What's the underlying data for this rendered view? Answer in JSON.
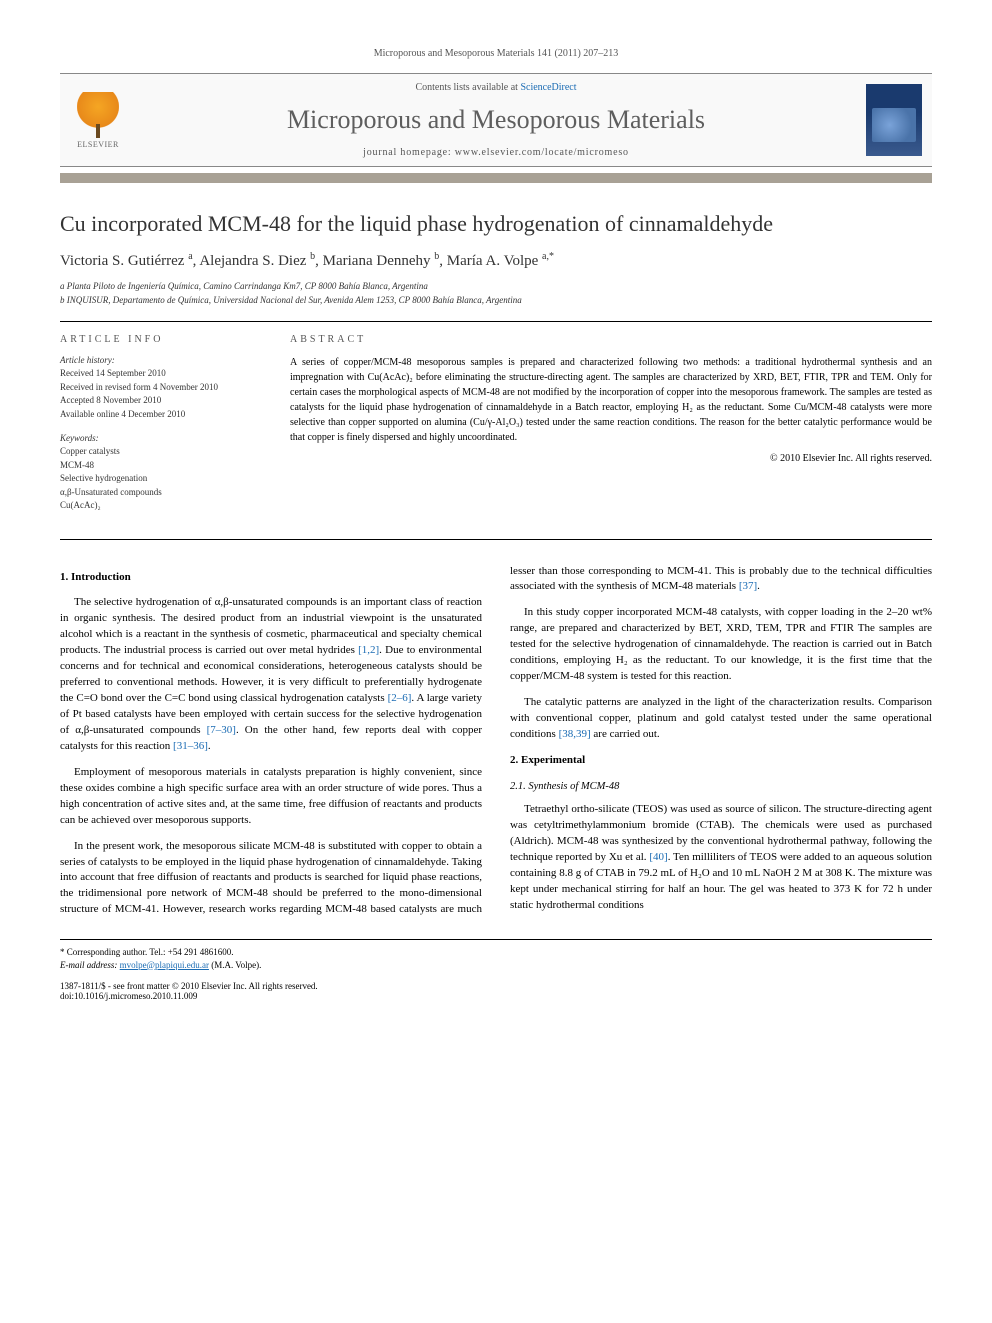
{
  "citation": "Microporous and Mesoporous Materials 141 (2011) 207–213",
  "header": {
    "publisher_name": "ELSEVIER",
    "contents_prefix": "Contents lists available at ",
    "contents_link": "ScienceDirect",
    "journal_name": "Microporous and Mesoporous Materials",
    "homepage_prefix": "journal homepage: ",
    "homepage_url": "www.elsevier.com/locate/micromeso"
  },
  "colors": {
    "rule_bar": "#a8a195",
    "link": "#1a6bb3",
    "journal_grey": "#5e5e5e",
    "cover_top": "#1a3a6e"
  },
  "title": "Cu incorporated MCM-48 for the liquid phase hydrogenation of cinnamaldehyde",
  "authors_html": "Victoria S. Gutiérrez <sup>a</sup>, Alejandra S. Diez <sup>b</sup>, Mariana Dennehy <sup>b</sup>, María A. Volpe <sup>a,*</sup>",
  "affiliations": [
    "a Planta Piloto de Ingeniería Química, Camino Carrindanga Km7, CP 8000 Bahía Blanca, Argentina",
    "b INQUISUR, Departamento de Química, Universidad Nacional del Sur, Avenida Alem 1253, CP 8000 Bahía Blanca, Argentina"
  ],
  "article_info": {
    "heading": "ARTICLE INFO",
    "history_label": "Article history:",
    "history": [
      "Received 14 September 2010",
      "Received in revised form 4 November 2010",
      "Accepted 8 November 2010",
      "Available online 4 December 2010"
    ],
    "keywords_label": "Keywords:",
    "keywords": [
      "Copper catalysts",
      "MCM-48",
      "Selective hydrogenation",
      "α,β-Unsaturated compounds",
      "Cu(AcAc)₂"
    ]
  },
  "abstract": {
    "heading": "ABSTRACT",
    "text": "A series of copper/MCM-48 mesoporous samples is prepared and characterized following two methods: a traditional hydrothermal synthesis and an impregnation with Cu(AcAc)₂ before eliminating the structure-directing agent. The samples are characterized by XRD, BET, FTIR, TPR and TEM. Only for certain cases the morphological aspects of MCM-48 are not modified by the incorporation of copper into the mesoporous framework. The samples are tested as catalysts for the liquid phase hydrogenation of cinnamaldehyde in a Batch reactor, employing H₂ as the reductant. Some Cu/MCM-48 catalysts were more selective than copper supported on alumina (Cu/γ-Al₂O₃) tested under the same reaction conditions. The reason for the better catalytic performance would be that copper is finely dispersed and highly uncoordinated.",
    "copyright": "© 2010 Elsevier Inc. All rights reserved."
  },
  "sections": {
    "intro_head": "1. Introduction",
    "intro_paras": [
      "The selective hydrogenation of α,β-unsaturated compounds is an important class of reaction in organic synthesis. The desired product from an industrial viewpoint is the unsaturated alcohol which is a reactant in the synthesis of cosmetic, pharmaceutical and specialty chemical products. The industrial process is carried out over metal hydrides [1,2]. Due to environmental concerns and for technical and economical considerations, heterogeneous catalysts should be preferred to conventional methods. However, it is very difficult to preferentially hydrogenate the C=O bond over the C=C bond using classical hydrogenation catalysts [2–6]. A large variety of Pt based catalysts have been employed with certain success for the selective hydrogenation of α,β-unsaturated compounds [7–30]. On the other hand, few reports deal with copper catalysts for this reaction [31–36].",
      "Employment of mesoporous materials in catalysts preparation is highly convenient, since these oxides combine a high specific surface area with an order structure of wide pores. Thus a high concentration of active sites and, at the same time, free diffusion of reactants and products can be achieved over mesoporous supports.",
      "In the present work, the mesoporous silicate MCM-48 is substituted with copper to obtain a series of catalysts to be employed in the liquid phase hydrogenation of cinnamaldehyde. Taking into account that free diffusion of reactants and products is searched for liquid phase reactions, the tridimensional pore network of MCM-48 should be preferred to the mono-dimensional structure of MCM-41. However, research works regarding MCM-48 based catalysts are much lesser than those corresponding to MCM-41. This is probably due to the technical difficulties associated with the synthesis of MCM-48 materials [37].",
      "In this study copper incorporated MCM-48 catalysts, with copper loading in the 2–20 wt% range, are prepared and characterized by BET, XRD, TEM, TPR and FTIR The samples are tested for the selective hydrogenation of cinnamaldehyde. The reaction is carried out in Batch conditions, employing H₂ as the reductant. To our knowledge, it is the first time that the copper/MCM-48 system is tested for this reaction.",
      "The catalytic patterns are analyzed in the light of the characterization results. Comparison with conventional copper, platinum and gold catalyst tested under the same operational conditions [38,39] are carried out."
    ],
    "exp_head": "2. Experimental",
    "exp_sub1": "2.1. Synthesis of MCM-48",
    "exp_paras": [
      "Tetraethyl ortho-silicate (TEOS) was used as source of silicon. The structure-directing agent was cetyltrimethylammonium bromide (CTAB). The chemicals were used as purchased (Aldrich). MCM-48 was synthesized by the conventional hydrothermal pathway, following the technique reported by Xu et al. [40]. Ten milliliters of TEOS were added to an aqueous solution containing 8.8 g of CTAB in 79.2 mL of H₂O and 10 mL NaOH 2 M at 308 K. The mixture was kept under mechanical stirring for half an hour. The gel was heated to 373 K for 72 h under static hydrothermal conditions"
    ]
  },
  "footnote": {
    "corr_label": "* Corresponding author. Tel.: +54 291 4861600.",
    "email_label": "E-mail address:",
    "email": "mvolpe@plapiqui.edu.ar",
    "email_suffix": "(M.A. Volpe)."
  },
  "footer": {
    "issn_line": "1387-1811/$ - see front matter © 2010 Elsevier Inc. All rights reserved.",
    "doi_line": "doi:10.1016/j.micromeso.2010.11.009"
  }
}
